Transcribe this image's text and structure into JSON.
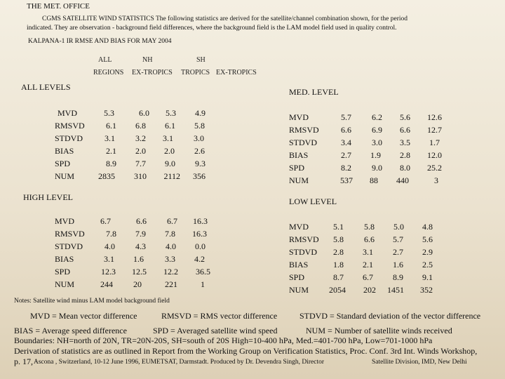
{
  "office": "THE MET. OFFICE",
  "intro_line1": "CGMS SATELLITE WIND STATISTICS          The following statistics are derived for the satellite/channel combination shown, for the period",
  "intro_line2": "indicated.  They are  observation - background field differences, where the background  field is the LAM model field used in quality control.",
  "subtitle": "KALPANA-1 IR   RMSE AND BIAS FOR MAY 2004",
  "col_headers": {
    "all": "ALL",
    "nh": "NH",
    "sh": "SH",
    "regions": "REGIONS",
    "ex_tropics_1": "EX-TROPICS",
    "tropics": "TROPICS",
    "ex_tropics_2": "EX-TROPICS"
  },
  "stat_labels": [
    "MVD",
    "RMSVD",
    "STDVD",
    "BIAS",
    "SPD",
    "NUM"
  ],
  "sections": {
    "all_levels": {
      "title": "ALL LEVELS",
      "values": [
        [
          "5.3",
          "6.0",
          "5.3",
          "4.9"
        ],
        [
          "6.1",
          "6.8",
          "6.1",
          "5.8"
        ],
        [
          "3.1",
          "3.2",
          "3.1",
          "3.0"
        ],
        [
          "2.1",
          "2.0",
          "2.0",
          "2.6"
        ],
        [
          "8.9",
          "7.7",
          "9.0",
          "9.3"
        ],
        [
          "2835",
          "310",
          "2112",
          "356"
        ]
      ]
    },
    "med_level": {
      "title": "MED. LEVEL",
      "values": [
        [
          "5.7",
          "6.2",
          "5.6",
          "12.6"
        ],
        [
          "6.6",
          "6.9",
          "6.6",
          "12.7"
        ],
        [
          "3.4",
          "3.0",
          "3.5",
          "1.7"
        ],
        [
          "2.7",
          "1.9",
          "2.8",
          "12.0"
        ],
        [
          "8.2",
          "9.0",
          "8.0",
          "25.2"
        ],
        [
          "537",
          "88",
          "440",
          "3"
        ]
      ]
    },
    "high_level": {
      "title": "HIGH LEVEL",
      "values": [
        [
          "6.7",
          "6.6",
          "6.7",
          "16.3"
        ],
        [
          "7.8",
          "7.9",
          "7.8",
          "16.3"
        ],
        [
          "4.0",
          "4.3",
          "4.0",
          "0.0"
        ],
        [
          "3.1",
          "1.6",
          "3.3",
          "4.2"
        ],
        [
          "12.3",
          "12.5",
          "12.2",
          "36.5"
        ],
        [
          "244",
          "20",
          "221",
          "1"
        ]
      ]
    },
    "low_level": {
      "title": "LOW LEVEL",
      "values": [
        [
          "5.1",
          "5.8",
          "5.0",
          "4.8"
        ],
        [
          "5.8",
          "6.6",
          "5.7",
          "5.6"
        ],
        [
          "2.8",
          "3.1",
          "2.7",
          "2.9"
        ],
        [
          "1.8",
          "2.1",
          "1.6",
          "2.5"
        ],
        [
          "8.7",
          "6.7",
          "8.9",
          "9.1"
        ],
        [
          "2054",
          "202",
          "1451",
          "352"
        ]
      ]
    }
  },
  "notes": {
    "heading": "Notes: Satellite wind minus LAM model background field",
    "mvd": "MVD  = Mean vector difference",
    "rmsvd": "RMSVD = RMS vector difference",
    "stdvd": "STDVD = Standard deviation of the vector difference",
    "bias": "BIAS  = Average speed difference",
    "spd": "SPD  = Averaged satellite  wind speed",
    "num": "NUM  = Number of satellite winds received",
    "boundaries": "Boundaries:    NH=north of 20N, TR=20N-20S, SH=south of 20S  High=10-400 hPa, Med.=401-700 hPa, Low=701-1000 hPa",
    "derivation": "Derivation of statistics are as outlined  in Report from the Working Group on Verification Statistics,  Proc. Conf. 3rd Int. Winds Workshop,",
    "ref_page": "p. 17,",
    "ref_rest": "Ascona ,   Switzerland, 10-12 June 1996, EUMETSAT, Darmstadt. Produced by   Dr. Devendra Singh, Director",
    "ref_division": "Satellite Division, IMD, New Delhi"
  }
}
